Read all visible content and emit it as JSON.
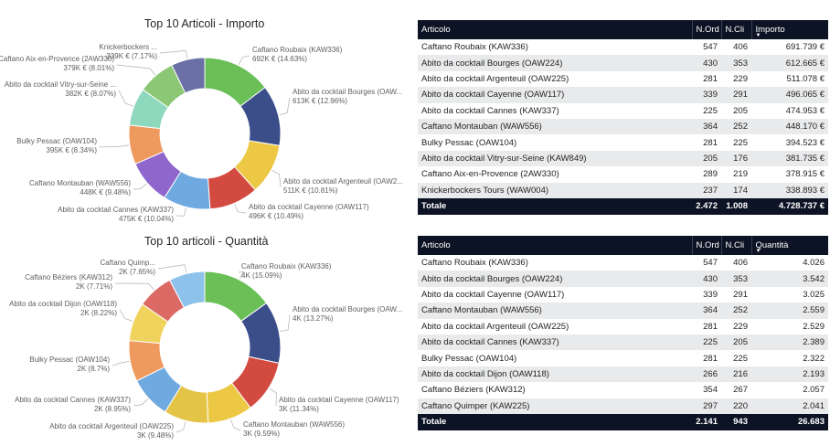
{
  "chart_data": [
    {
      "type": "pie",
      "title": "Top 10 Articoli - Importo",
      "categories": [
        "Caftano Roubaix (KAW336)",
        "Abito da cocktail Bourges (OAW224)",
        "Abito da cocktail Argenteuil (OAW225)",
        "Abito da cocktail Cayenne (OAW117)",
        "Abito da cocktail Cannes (KAW337)",
        "Caftano Montauban (WAW556)",
        "Bulky Pessac (OAW104)",
        "Abito da cocktail Vitry-sur-Seine (KAW849)",
        "Caftano Aix-en-Provence (2AW330)",
        "Knickerbockers Tours (WAW004)"
      ],
      "values": [
        691739,
        612665,
        511078,
        496065,
        474953,
        448170,
        394523,
        381735,
        378915,
        338893
      ],
      "labels": [
        [
          "Caftano Roubaix (KAW336)",
          "692K € (14.63%)"
        ],
        [
          "Abito da cocktail Bourges (OAW...",
          "613K € (12.96%)"
        ],
        [
          "Abito da cocktail Argenteuil (OAW2...",
          "511K € (10.81%)"
        ],
        [
          "Abito da cocktail Cayenne (OAW117)",
          "496K € (10.49%)"
        ],
        [
          "Abito da cocktail Cannes (KAW337)",
          "475K € (10.04%)"
        ],
        [
          "Caftano Montauban (WAW556)",
          "448K € (9.48%)"
        ],
        [
          "Bulky Pessac (OAW104)",
          "395K € (8.34%)"
        ],
        [
          "Abito da cocktail Vitry-sur-Seine ...",
          "382K € (8.07%)"
        ],
        [
          "Caftano Aix-en-Provence (2AW330)",
          "379K € (8.01%)"
        ],
        [
          "Knickerbockers ...",
          "339K € (7.17%)"
        ]
      ],
      "colors": [
        "#6abf57",
        "#3c4e8a",
        "#ecc844",
        "#d34a40",
        "#6ea9e0",
        "#8e66cc",
        "#ee9a5e",
        "#8ed9bd",
        "#8cc776",
        "#6a6fa6"
      ]
    },
    {
      "type": "pie",
      "title": "Top 10 articoli - Quantità",
      "categories": [
        "Caftano Roubaix (KAW336)",
        "Abito da cocktail Bourges (OAW224)",
        "Abito da cocktail Cayenne (OAW117)",
        "Caftano Montauban (WAW556)",
        "Abito da cocktail Argenteuil (OAW225)",
        "Abito da cocktail Cannes (KAW337)",
        "Bulky Pessac (OAW104)",
        "Abito da cocktail Dijon (OAW118)",
        "Caftano Béziers (KAW312)",
        "Caftano Quimper (KAW225)"
      ],
      "values": [
        4026,
        3542,
        3025,
        2559,
        2529,
        2389,
        2322,
        2193,
        2057,
        2041
      ],
      "labels": [
        [
          "Caftano Roubaix (KAW336)",
          "4K (15.09%)"
        ],
        [
          "Abito da cocktail Bourges (OAW...",
          "4K (13.27%)"
        ],
        [
          "Abito da cocktail Cayenne (OAW117)",
          "3K (11.34%)"
        ],
        [
          "Caftano Montauban (WAW556)",
          "3K (9.59%)"
        ],
        [
          "Abito da cocktail Argenteuil (OAW225)",
          "3K (9.48%)"
        ],
        [
          "Abito da cocktail Cannes (KAW337)",
          "2K (8.95%)"
        ],
        [
          "Bulky Pessac (OAW104)",
          "2K (8.7%)"
        ],
        [
          "Abito da cocktail Dijon (OAW118)",
          "2K (8.22%)"
        ],
        [
          "Caftano Béziers (KAW312)",
          "2K (7.71%)"
        ],
        [
          "Caftano Quimp...",
          "2K (7.65%)"
        ]
      ],
      "colors": [
        "#6abf57",
        "#3c4e8a",
        "#d34a40",
        "#ecc844",
        "#e4c446",
        "#6ea9e0",
        "#ee9a5e",
        "#f0d35c",
        "#dc6a64",
        "#8ec2ea"
      ]
    }
  ],
  "table_importo": {
    "headers": [
      "Articolo",
      "N.Ord",
      "N.Cli",
      "Importo"
    ],
    "rows": [
      [
        "Caftano Roubaix (KAW336)",
        "547",
        "406",
        "691.739 €"
      ],
      [
        "Abito da cocktail Bourges (OAW224)",
        "430",
        "353",
        "612.665 €"
      ],
      [
        "Abito da cocktail Argenteuil (OAW225)",
        "281",
        "229",
        "511.078 €"
      ],
      [
        "Abito da cocktail Cayenne (OAW117)",
        "339",
        "291",
        "496.065 €"
      ],
      [
        "Abito da cocktail Cannes (KAW337)",
        "225",
        "205",
        "474.953 €"
      ],
      [
        "Caftano Montauban (WAW556)",
        "364",
        "252",
        "448.170 €"
      ],
      [
        "Bulky Pessac (OAW104)",
        "281",
        "225",
        "394.523 €"
      ],
      [
        "Abito da cocktail Vitry-sur-Seine (KAW849)",
        "205",
        "176",
        "381.735 €"
      ],
      [
        "Caftano Aix-en-Provence (2AW330)",
        "289",
        "219",
        "378.915 €"
      ],
      [
        "Knickerbockers Tours (WAW004)",
        "237",
        "174",
        "338.893 €"
      ]
    ],
    "total": [
      "Totale",
      "2.472",
      "1.008",
      "4.728.737 €"
    ],
    "sort_icon": "sort-descending-icon"
  },
  "table_quantita": {
    "headers": [
      "Articolo",
      "N.Ord",
      "N.Cli",
      "Quantità"
    ],
    "rows": [
      [
        "Caftano Roubaix (KAW336)",
        "547",
        "406",
        "4.026"
      ],
      [
        "Abito da cocktail Bourges (OAW224)",
        "430",
        "353",
        "3.542"
      ],
      [
        "Abito da cocktail Cayenne (OAW117)",
        "339",
        "291",
        "3.025"
      ],
      [
        "Caftano Montauban (WAW556)",
        "364",
        "252",
        "2.559"
      ],
      [
        "Abito da cocktail Argenteuil (OAW225)",
        "281",
        "229",
        "2.529"
      ],
      [
        "Abito da cocktail Cannes (KAW337)",
        "225",
        "205",
        "2.389"
      ],
      [
        "Bulky Pessac (OAW104)",
        "281",
        "225",
        "2.322"
      ],
      [
        "Abito da cocktail Dijon (OAW118)",
        "266",
        "216",
        "2.193"
      ],
      [
        "Caftano Béziers (KAW312)",
        "354",
        "267",
        "2.057"
      ],
      [
        "Caftano Quimper (KAW225)",
        "297",
        "220",
        "2.041"
      ]
    ],
    "total": [
      "Totale",
      "2.141",
      "943",
      "26.683"
    ],
    "sort_icon": "sort-descending-icon"
  }
}
